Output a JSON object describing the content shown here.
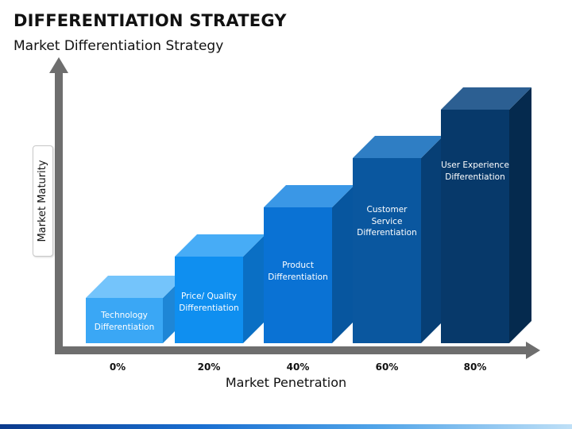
{
  "title": "DIFFERENTIATION STRATEGY",
  "subtitle": "Market Differentiation Strategy",
  "y_axis_label": "Market Maturity",
  "x_axis_label": "Market Penetration",
  "x_ticks": [
    "0%",
    "20%",
    "40%",
    "60%",
    "80%"
  ],
  "colors": {
    "axis": "#6e6e6e",
    "footer_start": "#0b3a8c",
    "footer_end": "#bfe0f7"
  },
  "steps": [
    {
      "label": "Technology\nDifferentiation",
      "colors": {
        "front": "#3aa7f5",
        "top": "#74c4fb",
        "side": "#1e86d6"
      }
    },
    {
      "label": "Price/ Quality\nDifferentiation",
      "colors": {
        "front": "#0f8ff0",
        "top": "#47acf6",
        "side": "#0a6fc4"
      }
    },
    {
      "label": "Product\nDifferentiation",
      "colors": {
        "front": "#0a72d4",
        "top": "#3a97e6",
        "side": "#07569f"
      }
    },
    {
      "label": "Customer\nService\nDifferentiation",
      "colors": {
        "front": "#0a579f",
        "top": "#2f7ec4",
        "side": "#073f75"
      }
    },
    {
      "label": "User Experience\nDifferentiation",
      "colors": {
        "front": "#07396a",
        "top": "#2c5f92",
        "side": "#052a4e"
      }
    }
  ]
}
